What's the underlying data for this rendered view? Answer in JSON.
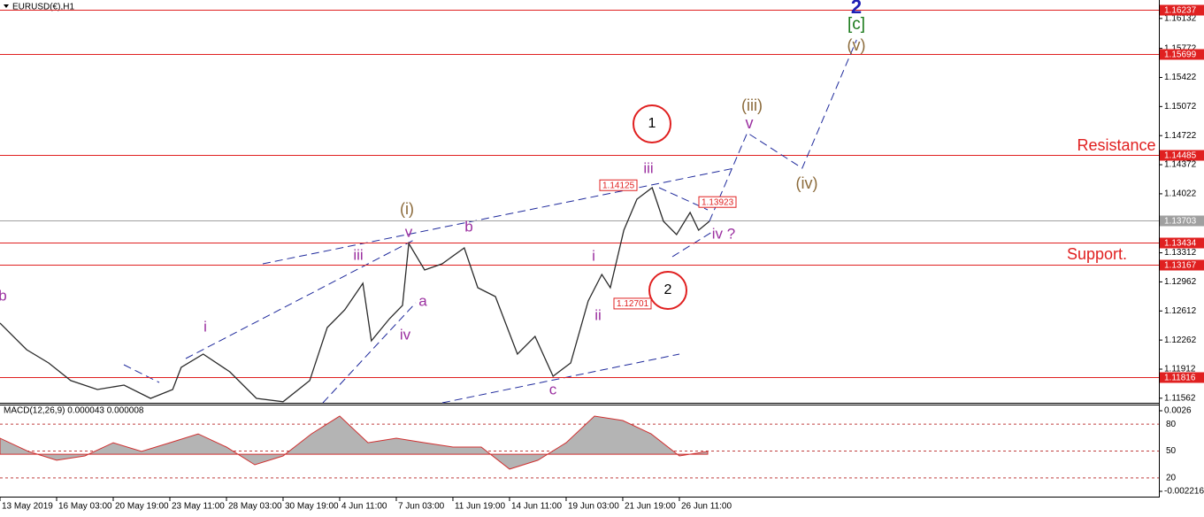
{
  "chart_data": {
    "type": "line",
    "title": "EURUSD(€),H1",
    "xlim": [
      0,
      20.47
    ],
    "xticks": [
      {
        "value": 0,
        "label": "13 May 2019"
      },
      {
        "value": 1,
        "label": "16 May 03:00"
      },
      {
        "value": 2,
        "label": "20 May 19:00"
      },
      {
        "value": 3,
        "label": "23 May 11:00"
      },
      {
        "value": 4,
        "label": "28 May 03:00"
      },
      {
        "value": 5,
        "label": "30 May 19:00"
      },
      {
        "value": 6,
        "label": "4 Jun 11:00"
      },
      {
        "value": 7,
        "label": "7 Jun 03:00"
      },
      {
        "value": 8,
        "label": "11 Jun 19:00"
      },
      {
        "value": 9,
        "label": "14 Jun 11:00"
      },
      {
        "value": 10,
        "label": "19 Jun 03:00"
      },
      {
        "value": 11,
        "label": "21 Jun 19:00"
      },
      {
        "value": 12,
        "label": "26 Jun 11:00"
      }
    ],
    "ylim": [
      1.11507,
      1.16354
    ],
    "yticks": [
      1.16132,
      1.15772,
      1.15422,
      1.15072,
      1.14722,
      1.14372,
      1.14022,
      1.13312,
      1.12962,
      1.12612,
      1.12262,
      1.11912,
      1.11562
    ],
    "levels": [
      {
        "value": 1.16237,
        "color": "#e02020"
      },
      {
        "value": 1.15699,
        "color": "#e02020"
      },
      {
        "value": 1.14485,
        "color": "#e02020"
      },
      {
        "value": 1.13703,
        "color": "#a0a0a0"
      },
      {
        "value": 1.13434,
        "color": "#e02020"
      },
      {
        "value": 1.13167,
        "color": "#e02020"
      },
      {
        "value": 1.11816,
        "color": "#e02020"
      }
    ],
    "series": [
      {
        "color": "#2b2b2b",
        "style": "solid",
        "x": [
          0,
          0.47,
          0.86,
          1.25,
          1.72,
          2.19,
          2.66,
          3.05,
          3.2,
          3.59,
          4.06,
          4.53,
          5.0,
          5.47,
          5.78,
          6.09,
          6.41,
          6.56,
          6.88,
          7.11,
          7.22,
          7.5,
          7.81,
          8.2,
          8.44,
          8.75,
          9.14,
          9.45,
          9.77,
          10.08,
          10.39,
          10.63,
          10.78,
          11.02,
          11.25,
          11.52,
          11.72,
          11.95,
          12.19,
          12.34,
          12.53
        ],
        "values": [
          1.12466,
          1.12146,
          1.11986,
          1.11774,
          1.11667,
          1.1172,
          1.1156,
          1.11667,
          1.11933,
          1.12093,
          1.1188,
          1.1156,
          1.1152,
          1.11774,
          1.12413,
          1.12626,
          1.12945,
          1.12253,
          1.12519,
          1.12679,
          1.13425,
          1.13105,
          1.1318,
          1.13371,
          1.12892,
          1.12785,
          1.12093,
          1.12306,
          1.11827,
          1.11986,
          1.12732,
          1.13052,
          1.12892,
          1.13584,
          1.13957,
          1.14096,
          1.13691,
          1.13531,
          1.13797,
          1.13584,
          1.13691
        ]
      },
      {
        "color": "#1f2a9c",
        "style": "dashed",
        "x": [
          12.53,
          13.2,
          14.17,
          15.13
        ],
        "values": [
          1.13691,
          1.14756,
          1.1433,
          1.15875
        ]
      }
    ],
    "price_tags": [
      1.14125,
      1.13923,
      1.12701
    ],
    "annotations": [
      "2",
      "[c]",
      "(v)",
      "(iii)",
      "v",
      "1",
      "iii",
      "Resistance",
      "(iv)",
      "iv ?",
      "Support.",
      "(i)",
      "v",
      "b",
      "iii",
      "i",
      "2",
      "ii",
      "a",
      "iv",
      "i",
      "c",
      "b"
    ],
    "macd": {
      "label": "MACD(12,26,9) 0.000043 0.000008",
      "color": "#b4b4b4",
      "ylim": [
        -0.002216,
        0.0026
      ],
      "yticks": [
        0.0026,
        -0.002216
      ],
      "y2lim": [
        5,
        95
      ],
      "y2ticks": [
        80,
        50,
        20
      ],
      "x": [
        0,
        0.5,
        1,
        1.5,
        2,
        2.5,
        3,
        3.5,
        4,
        4.5,
        5,
        5.5,
        6,
        6.5,
        7,
        7.5,
        8,
        8.5,
        9,
        9.5,
        10,
        10.5,
        11,
        11.5,
        12,
        12.5
      ],
      "values": [
        0.00096,
        0.00017,
        -0.00036,
        -0.0001,
        0.00069,
        0.00017,
        0.00069,
        0.00122,
        0.00043,
        -0.00063,
        -0.0001,
        0.00122,
        0.00228,
        0.00069,
        0.00096,
        0.00069,
        0.00043,
        0.00043,
        -0.00089,
        -0.00036,
        0.00069,
        0.00228,
        0.00202,
        0.00122,
        -0.0001,
        0.00017
      ]
    }
  }
}
